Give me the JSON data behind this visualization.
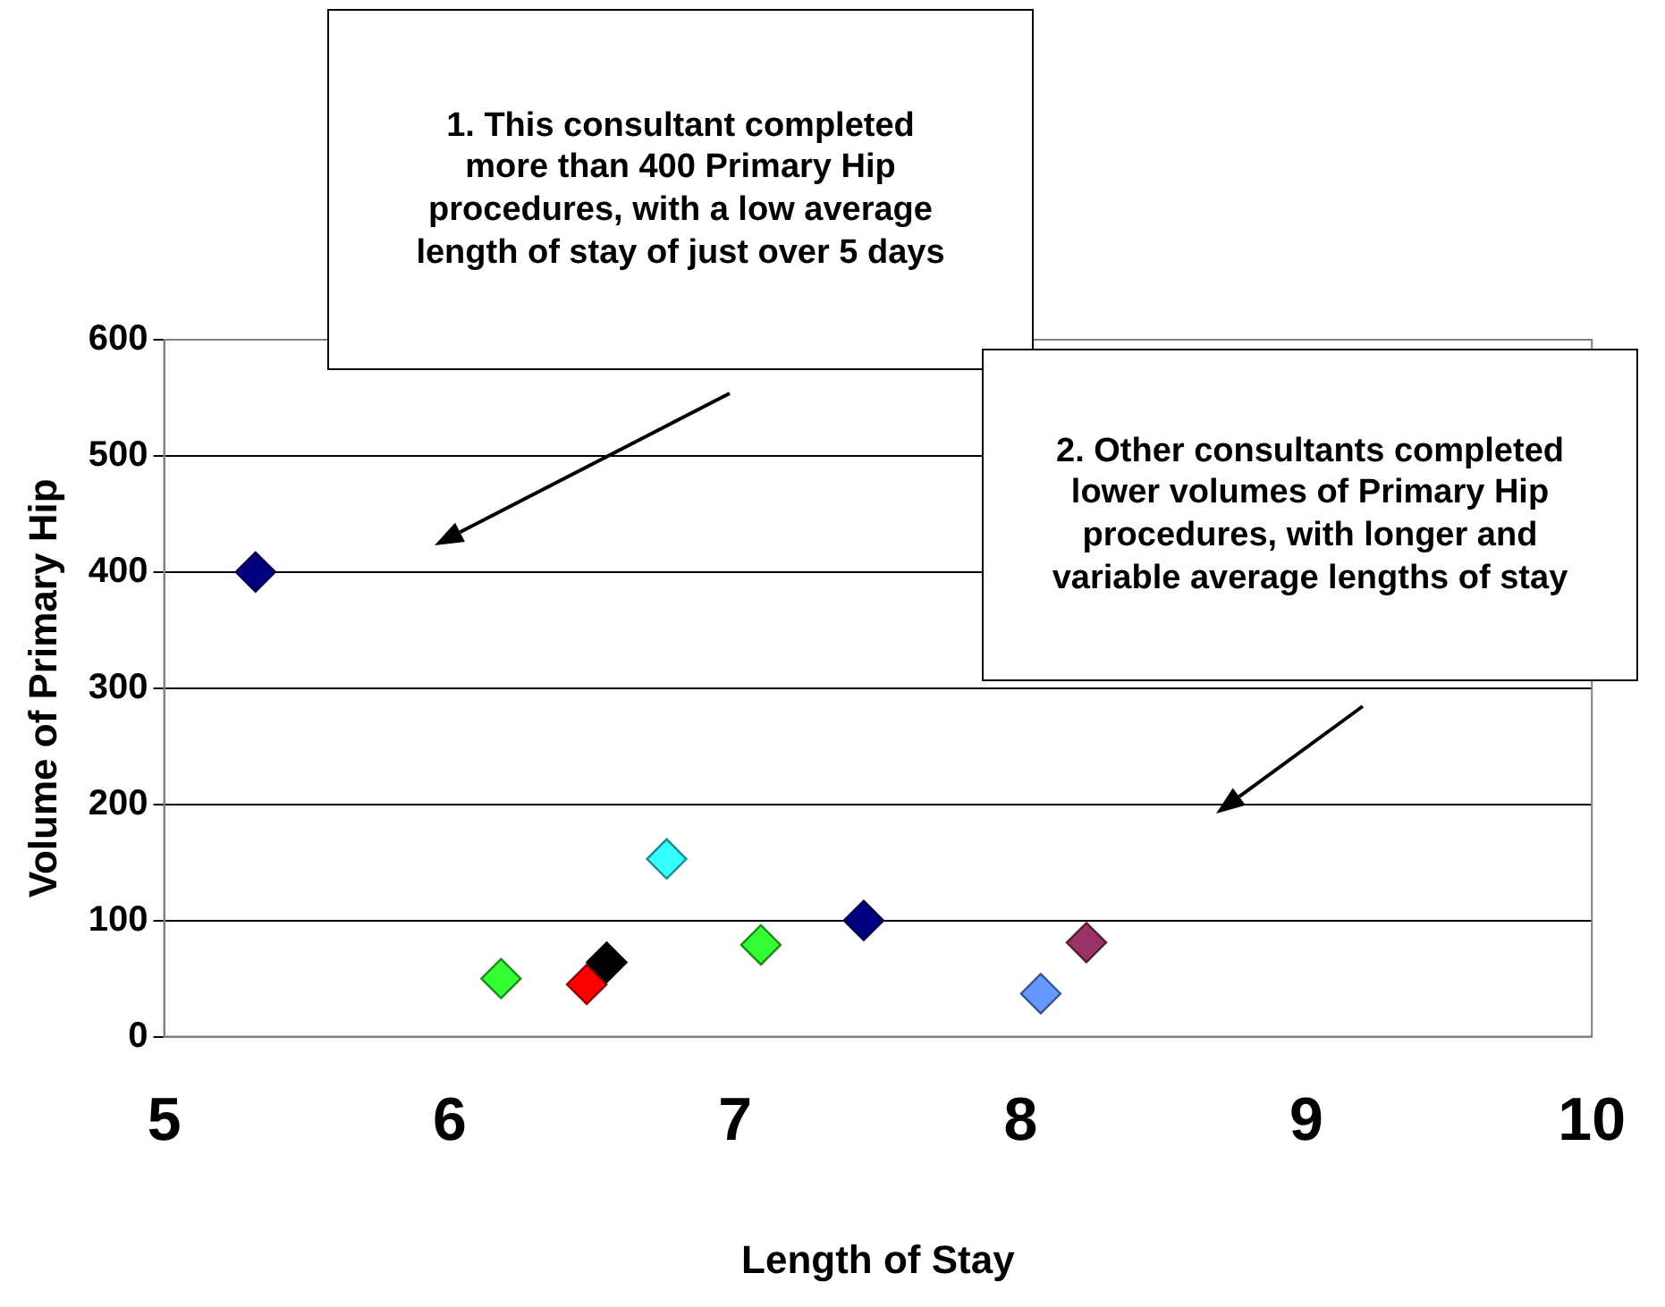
{
  "chart_data": {
    "type": "scatter",
    "xlabel": "Length of Stay",
    "ylabel": "Volume of Primary Hip",
    "x": [
      5.32,
      6.18,
      6.48,
      6.55,
      6.76,
      7.09,
      7.45,
      8.07,
      8.23
    ],
    "values": [
      400,
      50,
      45,
      64,
      153,
      79,
      100,
      37,
      81
    ],
    "colors": [
      "#000080",
      "#33ff33",
      "#ff0000",
      "#000000",
      "#33ffff",
      "#33ff33",
      "#000080",
      "#6699ff",
      "#993366"
    ],
    "xlim": [
      5,
      10
    ],
    "xticks": [
      5,
      6,
      7,
      8,
      9,
      10
    ],
    "ylim": [
      0,
      600
    ],
    "yticks": [
      0,
      100,
      200,
      300,
      400,
      500,
      600
    ],
    "grid": "y",
    "marker": "diamond",
    "legend": false,
    "annotations": [
      "1. This consultant completed more than 400 Primary Hip procedures, with a low average length of stay of just over 5 days",
      "2. Other consultants completed lower volumes of Primary Hip procedures, with longer and variable average lengths of stay"
    ]
  }
}
